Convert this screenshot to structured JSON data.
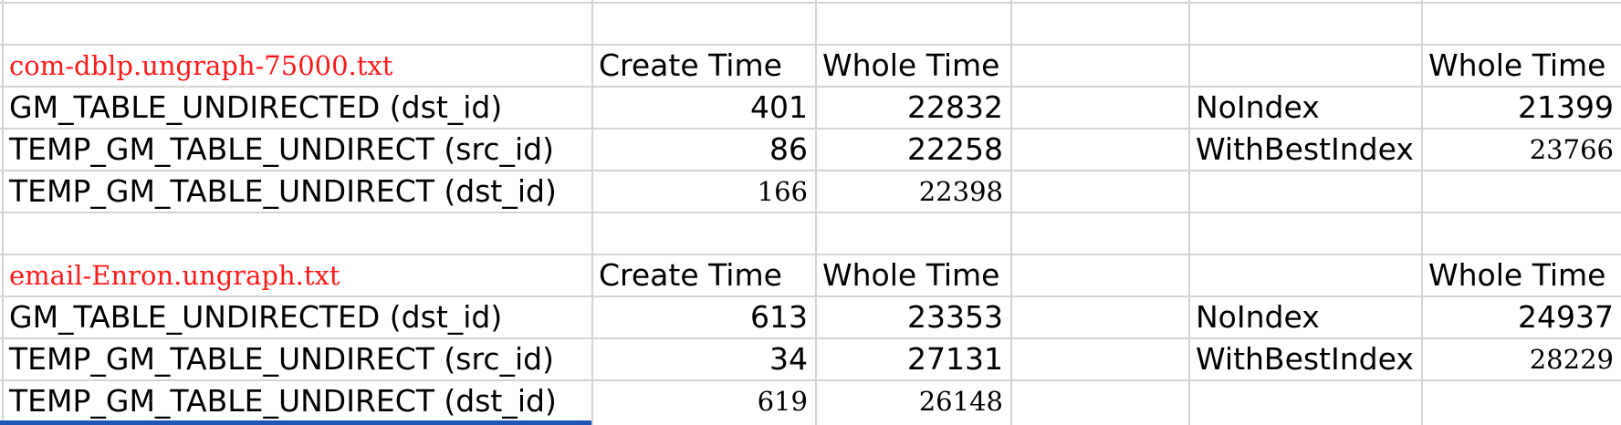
{
  "sheet": {
    "blocks": [
      {
        "dataset": "com-dblp.ungraph-75000.txt",
        "header_create": "Create Time",
        "header_whole": "Whole Time",
        "rows": [
          {
            "label": "GM_TABLE_UNDIRECTED (dst_id)",
            "create": "401",
            "whole": "22832"
          },
          {
            "label": "TEMP_GM_TABLE_UNDIRECT (src_id)",
            "create": "86",
            "whole": "22258"
          },
          {
            "label": "TEMP_GM_TABLE_UNDIRECT (dst_id)",
            "create": "166",
            "whole": "22398"
          }
        ],
        "side_header_whole": "Whole Time",
        "side_rows": [
          {
            "label": "NoIndex",
            "whole": "21399"
          },
          {
            "label": "WithBestIndex",
            "whole": "23766"
          }
        ]
      },
      {
        "dataset": "email-Enron.ungraph.txt",
        "header_create": "Create Time",
        "header_whole": "Whole Time",
        "rows": [
          {
            "label": "GM_TABLE_UNDIRECTED (dst_id)",
            "create": "613",
            "whole": "23353"
          },
          {
            "label": "TEMP_GM_TABLE_UNDIRECT (src_id)",
            "create": "34",
            "whole": "27131"
          },
          {
            "label": "TEMP_GM_TABLE_UNDIRECT (dst_id)",
            "create": "619",
            "whole": "26148"
          }
        ],
        "side_header_whole": "Whole Time",
        "side_rows": [
          {
            "label": "NoIndex",
            "whole": "24937"
          },
          {
            "label": "WithBestIndex",
            "whole": "28229"
          }
        ]
      }
    ],
    "colors": {
      "gridline": "#d4d4d4",
      "dataset_text": "#ff1a1a",
      "selection": "#1f56b8"
    }
  }
}
